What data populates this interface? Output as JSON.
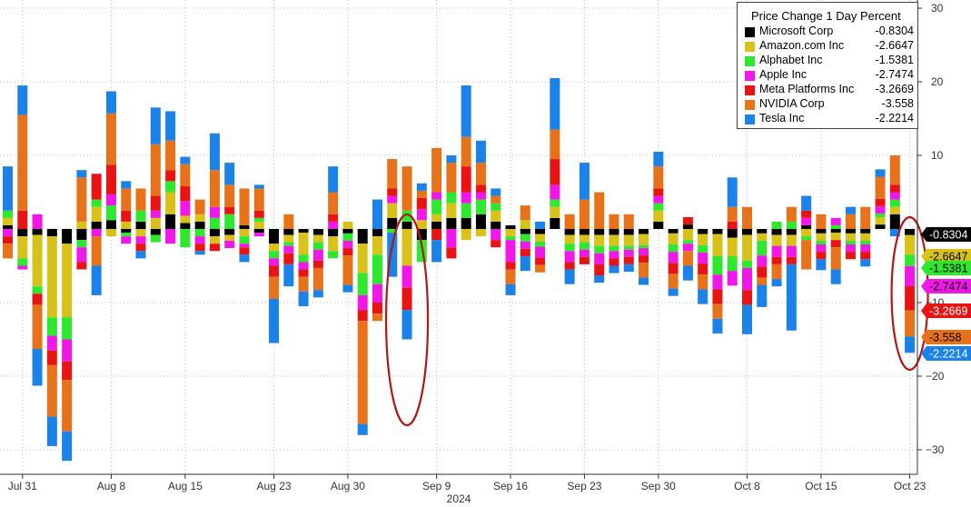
{
  "chart_data": {
    "type": "bar",
    "stacked": true,
    "title": "Price Change 1 Day Percent",
    "xlabel": "2024",
    "ylim": [
      -34,
      30
    ],
    "y_ticks": [
      30,
      20,
      10,
      -10,
      -20,
      -30
    ],
    "x_ticks": [
      {
        "label": "Jul 31",
        "index": 1
      },
      {
        "label": "Aug 8",
        "index": 7
      },
      {
        "label": "Aug 15",
        "index": 12
      },
      {
        "label": "Aug 23",
        "index": 18
      },
      {
        "label": "Aug 30",
        "index": 23
      },
      {
        "label": "Sep 9",
        "index": 29
      },
      {
        "label": "Sep 16",
        "index": 34
      },
      {
        "label": "Sep 23",
        "index": 39
      },
      {
        "label": "Sep 30",
        "index": 44
      },
      {
        "label": "Oct 8",
        "index": 50
      },
      {
        "label": "Oct 15",
        "index": 55
      },
      {
        "label": "Oct 23",
        "index": 61
      }
    ],
    "grid": true,
    "legend_position": "top-right",
    "series": [
      {
        "name": "Microsoft Corp",
        "color": "#000000",
        "legend_value": "-0.8304",
        "values": [
          0.5,
          -1,
          -0.8,
          -1,
          -2,
          -1.5,
          1,
          1.2,
          -0.5,
          1,
          -0.8,
          2,
          0.8,
          1,
          -1,
          -0.8,
          0.5,
          -0.5,
          -2,
          -0.8,
          -0.5,
          -0.8,
          -1,
          -0.6,
          -2,
          -1,
          1.5,
          1,
          -1.5,
          1,
          1.5,
          1.5,
          2,
          1,
          0.5,
          -0.7,
          -0.7,
          1.5,
          -0.8,
          -0.8,
          -0.8,
          -0.8,
          -0.8,
          -0.7,
          1,
          -0.6,
          0.6,
          -0.7,
          -0.7,
          -1.2,
          -0.8,
          -0.6,
          -0.8,
          -0.8,
          0.5,
          -0.6,
          -0.5,
          -0.6,
          -0.6,
          0.6,
          2,
          -0.8304
        ]
      },
      {
        "name": "Amazon.com Inc",
        "color": "#d8c21a",
        "legend_value": "-2.6647",
        "values": [
          1,
          -3,
          -7,
          -11,
          -10,
          1,
          2,
          -1,
          1,
          -1,
          1.5,
          3,
          1,
          1,
          -1,
          -0.8,
          -1,
          1,
          -1,
          -1,
          -3,
          -1,
          -2,
          1,
          -4,
          -2.5,
          2,
          -5,
          1.2,
          1,
          2,
          -1.5,
          -1,
          1.5,
          -1,
          1.2,
          -1,
          1.5,
          -1.2,
          -1,
          -1.5,
          -1.5,
          -1.5,
          -1.5,
          1.5,
          -1.5,
          -1.5,
          -1.5,
          -3,
          -2.5,
          -3.5,
          -1,
          -1.5,
          -1.5,
          -1,
          -1,
          -1,
          -1,
          -1,
          1,
          1,
          -2.6647
        ]
      },
      {
        "name": "Alphabet Inc",
        "color": "#2ee82e",
        "legend_value": "-1.5381",
        "values": [
          1,
          -1,
          -1,
          -2.5,
          -3,
          -1,
          1,
          2,
          -0.5,
          1.5,
          -1,
          1.5,
          -2.5,
          -1,
          1.5,
          2,
          -1,
          0.5,
          -1,
          -0.5,
          -1,
          -1,
          -1,
          -1,
          -3,
          -4,
          -0.5,
          1.5,
          -3,
          2,
          1.5,
          2,
          2,
          1,
          -0.5,
          -1,
          -0.7,
          1,
          -1,
          -1,
          -1,
          -0.7,
          -0.5,
          -0.4,
          1,
          -1,
          -0.5,
          -1,
          -2.5,
          -2,
          -1,
          -2,
          1,
          1,
          -0.5,
          -0.5,
          0.5,
          -0.5,
          -0.5,
          0.5,
          1,
          -1.5381
        ]
      },
      {
        "name": "Apple Inc",
        "color": "#f018e8",
        "legend_value": "-2.7474",
        "values": [
          -1,
          -0.5,
          2,
          -2,
          -3,
          -2,
          -1,
          1.5,
          -1,
          -1,
          1,
          -2,
          2,
          -1,
          1.5,
          -1,
          -0.5,
          -0.5,
          -1,
          -1,
          -1,
          -1.5,
          1,
          -1,
          -2,
          -2.5,
          1,
          -3,
          1.5,
          1,
          -2.5,
          1.5,
          1,
          -1.5,
          -3,
          -1,
          -1.5,
          2,
          -1.5,
          -1,
          -1.5,
          -1,
          -1,
          -1,
          1,
          -1.5,
          -1,
          -1.5,
          -2,
          -2,
          -3,
          -1.5,
          -1.5,
          -1.5,
          1,
          -1,
          1,
          -1,
          -1,
          1,
          1,
          -2.7474
        ]
      },
      {
        "name": "Meta Platforms Inc",
        "color": "#e81414",
        "legend_value": "-3.2669",
        "values": [
          -1,
          2.5,
          -1.5,
          -2,
          -2.5,
          -1,
          3.5,
          4,
          1.5,
          -1,
          2,
          1.5,
          2,
          -1,
          -1,
          1,
          -1,
          1,
          -1.5,
          -1.5,
          -1,
          -1,
          1,
          -1,
          -1.5,
          -1.5,
          1,
          -3,
          1.5,
          -1.5,
          -1.5,
          3.5,
          1,
          -1,
          -1,
          -1,
          -1,
          3.5,
          -1,
          -1,
          -1.5,
          -1,
          -1,
          -1,
          1,
          -1.5,
          1,
          -1.5,
          -2,
          1,
          -2,
          -1.5,
          -1,
          -1,
          1,
          -1,
          -1,
          -1,
          -1,
          1,
          1,
          -3.2669
        ]
      },
      {
        "name": "NVIDIA Corp",
        "color": "#e8721a",
        "legend_value": "-3.558",
        "values": [
          -2,
          13,
          -6,
          -7,
          -7,
          6,
          -4,
          7,
          3,
          3,
          7,
          4,
          3,
          2,
          5,
          3,
          5,
          3,
          -3,
          2,
          -2,
          -3,
          3,
          -4,
          -14,
          -1,
          4,
          6,
          1,
          6,
          4,
          4,
          3,
          1,
          -2,
          2,
          -1,
          4,
          2,
          4,
          5,
          2,
          2,
          -2,
          3,
          -2,
          -2,
          -2,
          -2,
          2,
          3,
          -1,
          -2,
          2,
          -4,
          2,
          -3,
          2,
          3,
          3,
          4,
          -3.558
        ]
      },
      {
        "name": "Tesla Inc",
        "color": "#1a82e8",
        "legend_value": "-2.2214",
        "values": [
          6,
          4,
          -5,
          -4,
          -4,
          1,
          -4,
          3,
          1,
          -1,
          5,
          4,
          1,
          -0.5,
          5,
          3,
          -1,
          0.5,
          -6,
          -3,
          -2,
          -1,
          3.5,
          -1,
          -1.5,
          4,
          -6,
          -4,
          1,
          -3,
          1,
          7,
          3,
          1,
          -1.5,
          -2,
          1,
          7,
          -2,
          5,
          -1,
          -1,
          -1,
          -1,
          2,
          -1,
          -2,
          -2,
          -2,
          4,
          -4,
          -3,
          -1,
          -9,
          2,
          -1.5,
          -2,
          1,
          -1,
          1,
          -1,
          -2.2214
        ]
      }
    ],
    "end_labels": [
      "-0.8304",
      "-2.6647",
      "-1.5381",
      "-2.7474",
      "-3.2669",
      "-3.558",
      "-2.2214"
    ]
  }
}
